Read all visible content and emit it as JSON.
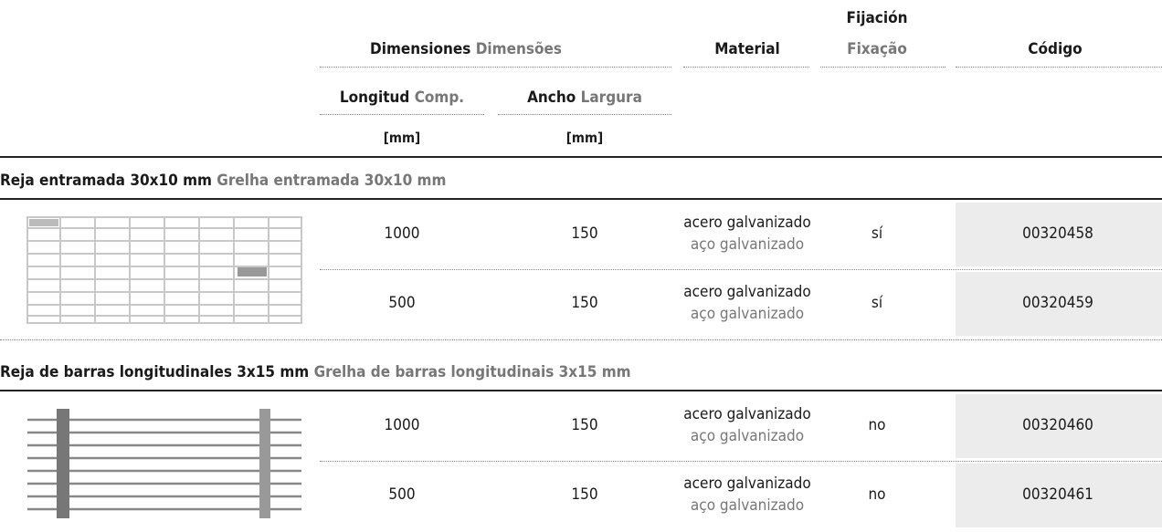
{
  "header": {
    "dimensions": {
      "es": "Dimensiones",
      "pt": "Dimensões"
    },
    "material": "Material",
    "fixing": {
      "es": "Fijación",
      "pt": "Fixação"
    },
    "code": "Código",
    "length": {
      "es": "Longitud",
      "pt": "Comp."
    },
    "width": {
      "es": "Ancho",
      "pt": "Largura"
    },
    "length_unit": "[mm]",
    "width_unit": "[mm]"
  },
  "sections": [
    {
      "title": {
        "es": "Reja entramada 30x10 mm",
        "pt": "Grelha entramada 30x10 mm"
      },
      "rows": [
        {
          "length": 1000,
          "width": 150,
          "material": {
            "es": "acero galvanizado",
            "pt": "aço galvanizado"
          },
          "fixing": "sí",
          "code": "00320458"
        },
        {
          "length": 500,
          "width": 150,
          "material": {
            "es": "acero galvanizado",
            "pt": "aço galvanizado"
          },
          "fixing": "sí",
          "code": "00320459"
        }
      ]
    },
    {
      "title": {
        "es": "Reja de barras longitudinales 3x15 mm",
        "pt": "Grelha de barras longitudinais 3x15 mm"
      },
      "rows": [
        {
          "length": 1000,
          "width": 150,
          "material": {
            "es": "acero galvanizado",
            "pt": "aço galvanizado"
          },
          "fixing": "no",
          "code": "00320460"
        },
        {
          "length": 500,
          "width": 150,
          "material": {
            "es": "acero galvanizado",
            "pt": "aço galvanizado"
          },
          "fixing": "no",
          "code": "00320461"
        }
      ]
    }
  ]
}
